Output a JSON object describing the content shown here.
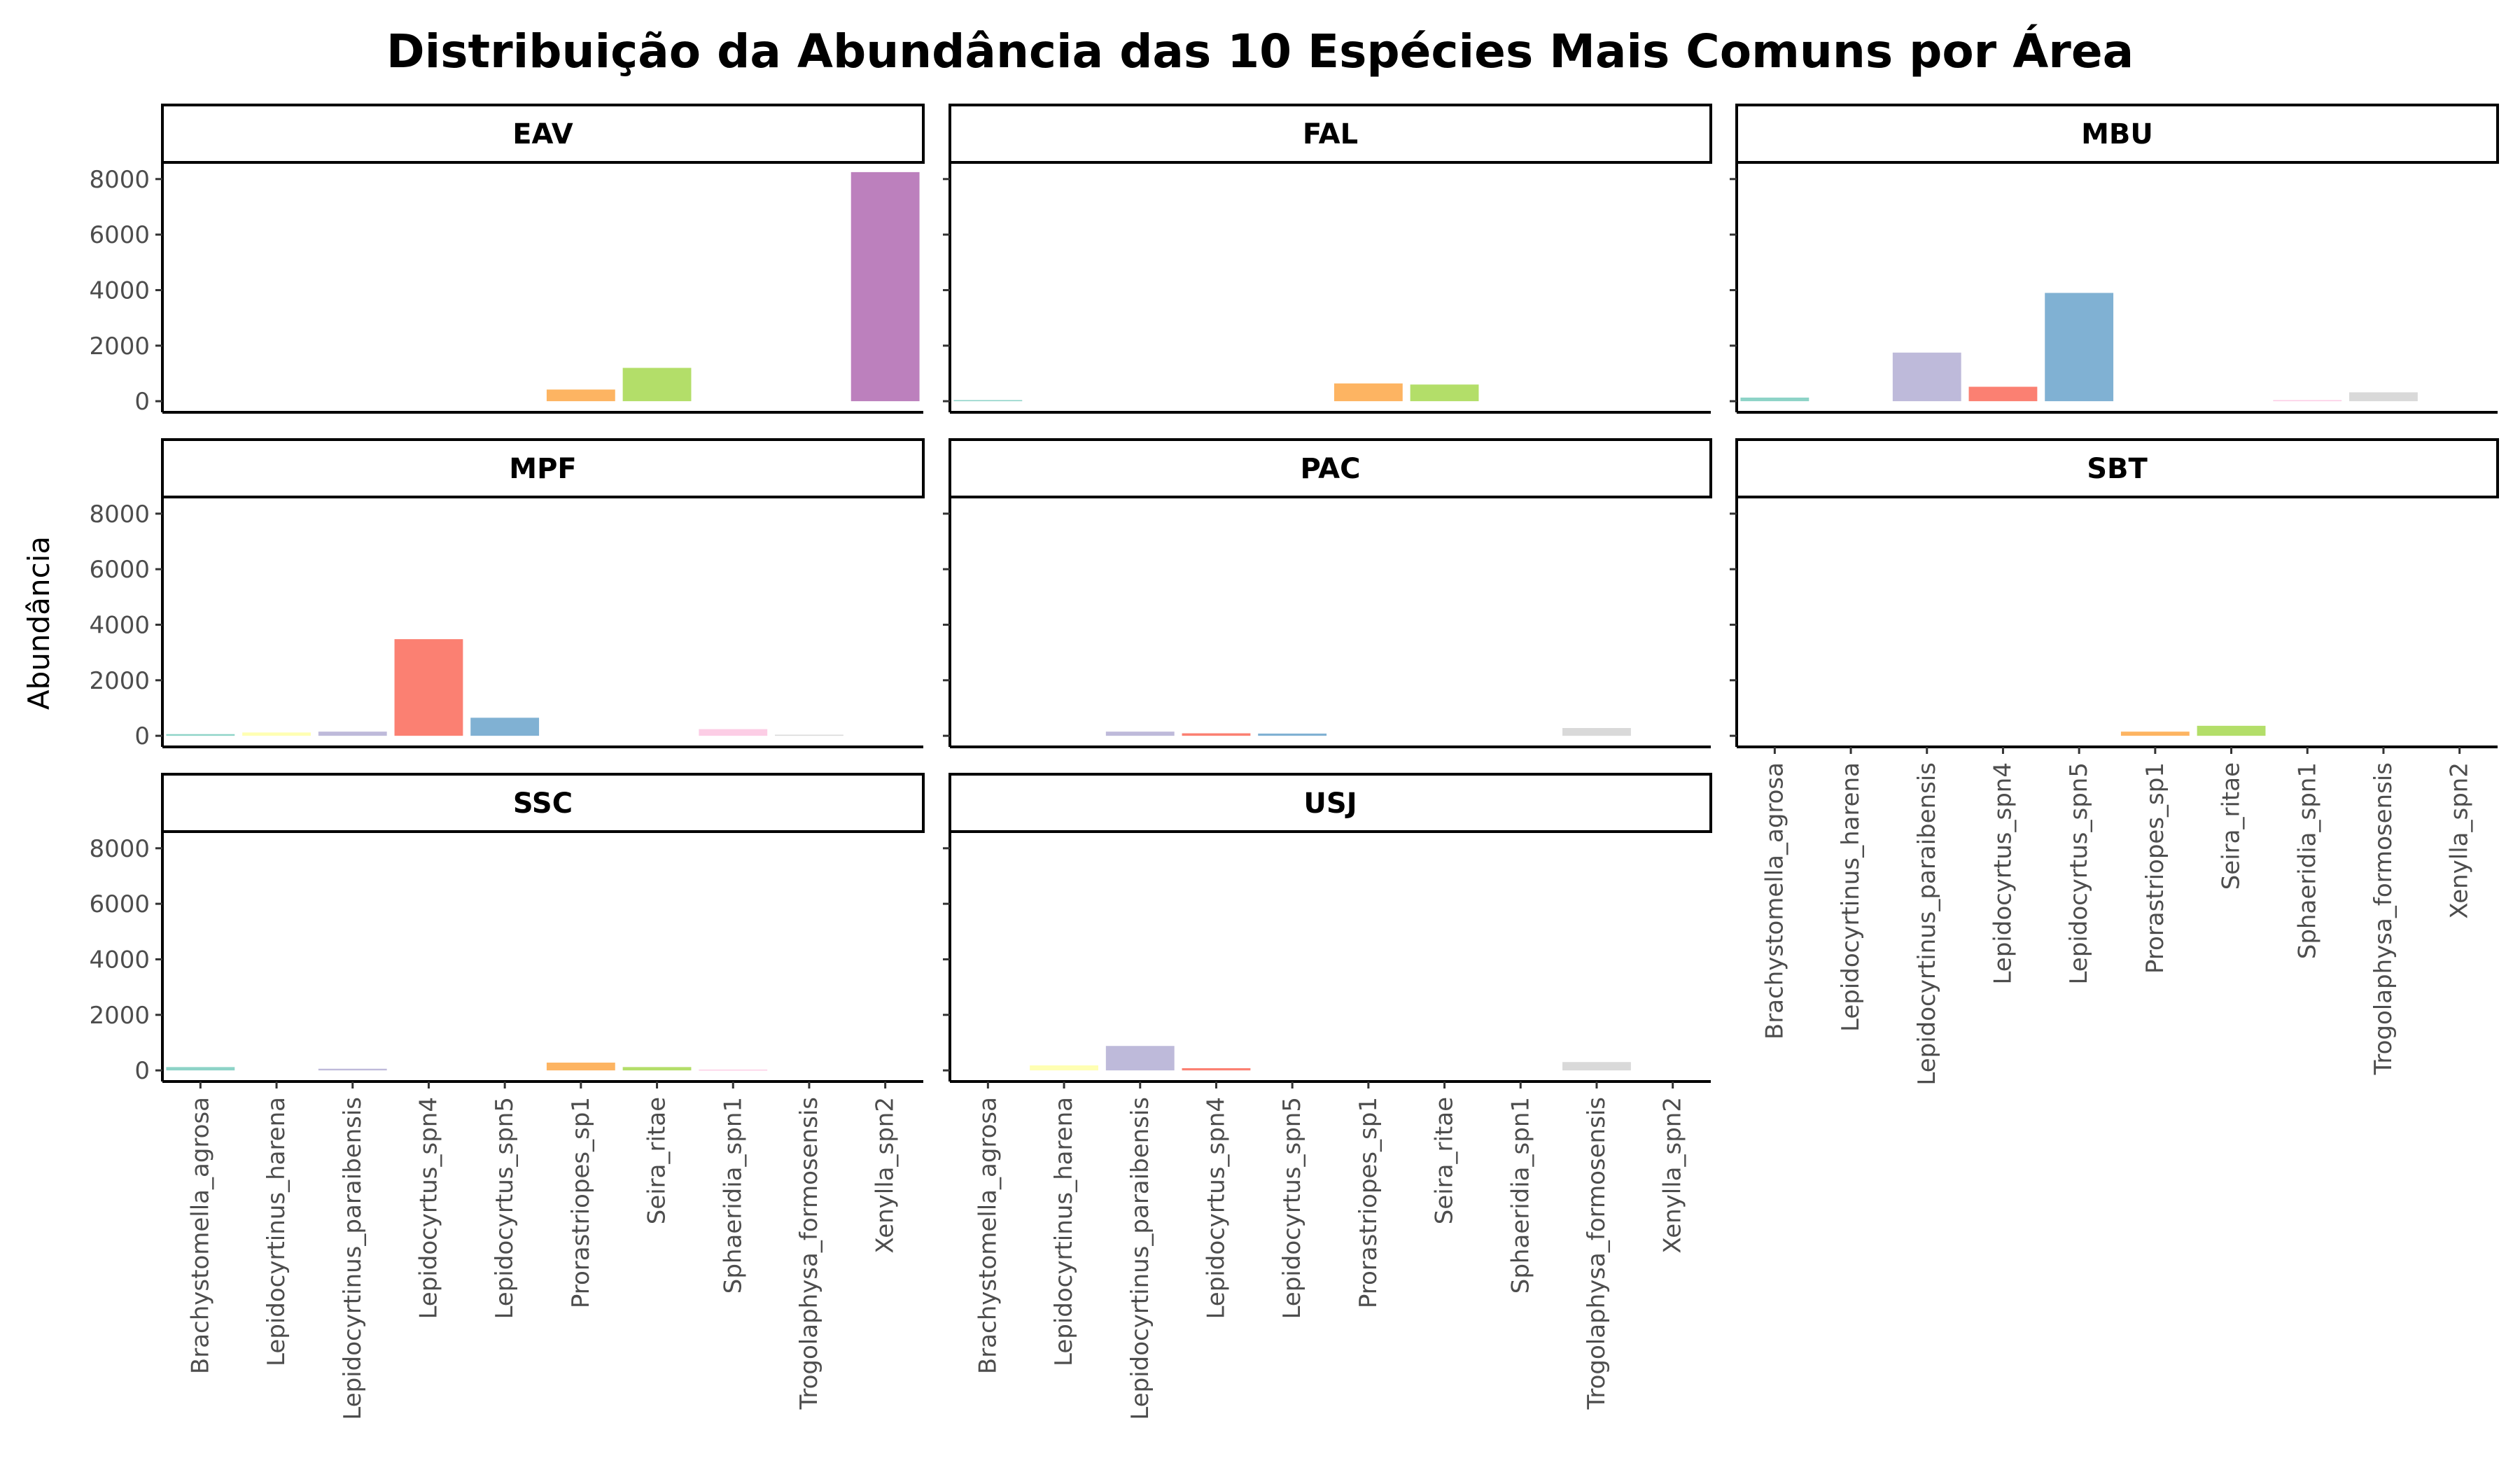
{
  "chart_data": {
    "type": "bar",
    "title": "Distribuição da Abundância das 10 Espécies Mais Comuns por Área",
    "xlabel": "",
    "ylabel": "Abundância",
    "ylim": [
      -400,
      8600
    ],
    "yticks": [
      0,
      2000,
      4000,
      6000,
      8000
    ],
    "grid": false,
    "legend": "none",
    "categories": [
      "Brachystomella_agrosa",
      "Lepidocyrtinus_harena",
      "Lepidocyrtinus_paraibensis",
      "Lepidocyrtus_spn4",
      "Lepidocyrtus_spn5",
      "Prorastriopes_sp1",
      "Seira_ritae",
      "Sphaeridia_spn1",
      "Trogolaphysa_formosensis",
      "Xenylla_spn2"
    ],
    "colors": [
      "#8DD3C7",
      "#FFFFB3",
      "#BEBADA",
      "#FB8072",
      "#80B1D3",
      "#FDB462",
      "#B3DE69",
      "#FCCDE5",
      "#D9D9D9",
      "#BC80BD"
    ],
    "facets": [
      {
        "name": "EAV",
        "values": [
          0,
          0,
          0,
          0,
          0,
          420,
          1200,
          0,
          0,
          8250
        ]
      },
      {
        "name": "FAL",
        "values": [
          40,
          0,
          0,
          0,
          0,
          640,
          600,
          0,
          0,
          0
        ]
      },
      {
        "name": "MBU",
        "values": [
          130,
          0,
          1750,
          520,
          3900,
          0,
          0,
          40,
          320,
          0
        ]
      },
      {
        "name": "MPF",
        "values": [
          60,
          120,
          150,
          3480,
          650,
          0,
          0,
          240,
          40,
          0
        ]
      },
      {
        "name": "PAC",
        "values": [
          0,
          0,
          150,
          90,
          80,
          0,
          0,
          0,
          280,
          0
        ]
      },
      {
        "name": "SBT",
        "values": [
          0,
          0,
          0,
          0,
          0,
          150,
          360,
          0,
          0,
          0
        ]
      },
      {
        "name": "SSC",
        "values": [
          120,
          0,
          60,
          0,
          0,
          280,
          120,
          30,
          0,
          0
        ]
      },
      {
        "name": "USJ",
        "values": [
          0,
          180,
          880,
          80,
          0,
          0,
          0,
          0,
          300,
          0
        ]
      }
    ]
  }
}
